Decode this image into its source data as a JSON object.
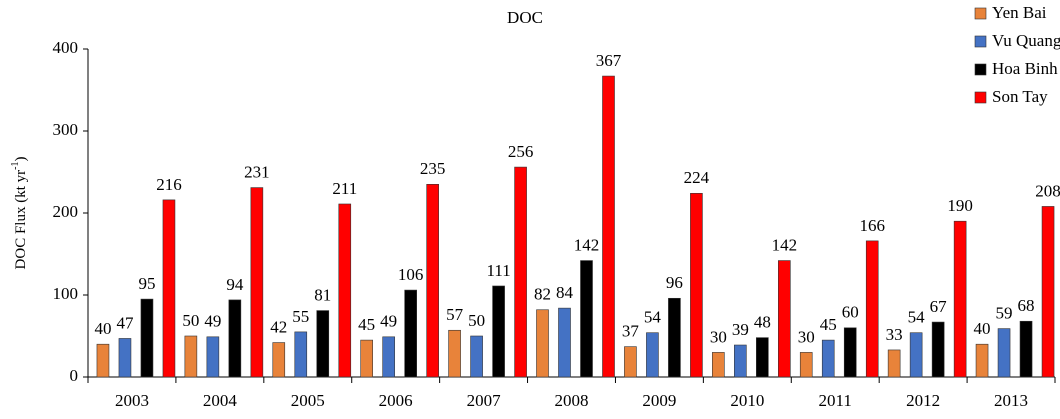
{
  "chart_data": {
    "type": "bar",
    "title": "DOC",
    "y_label": {
      "text": "DOC Flux (kt yr",
      "superscript": "-1",
      "suffix": ")"
    },
    "categories": [
      "2003",
      "2004",
      "2005",
      "2006",
      "2007",
      "2008",
      "2009",
      "2010",
      "2011",
      "2012",
      "2013"
    ],
    "series": [
      {
        "name": "Yen Bai",
        "color": "#e8833a",
        "values": [
          40,
          50,
          42,
          45,
          57,
          82,
          37,
          30,
          30,
          33,
          40
        ]
      },
      {
        "name": "Vu Quang",
        "color": "#4472c4",
        "values": [
          47,
          49,
          55,
          49,
          50,
          84,
          54,
          39,
          45,
          54,
          59
        ]
      },
      {
        "name": "Hoa Binh",
        "color": "#000000",
        "values": [
          95,
          94,
          81,
          106,
          111,
          142,
          96,
          48,
          60,
          67,
          68
        ]
      },
      {
        "name": "Son Tay",
        "color": "#ff0000",
        "values": [
          216,
          231,
          211,
          235,
          256,
          367,
          224,
          142,
          166,
          190,
          208
        ]
      }
    ],
    "ylim": [
      0,
      400
    ],
    "yticks": [
      0,
      100,
      200,
      300,
      400
    ],
    "grid": false,
    "legend": "top-right"
  }
}
